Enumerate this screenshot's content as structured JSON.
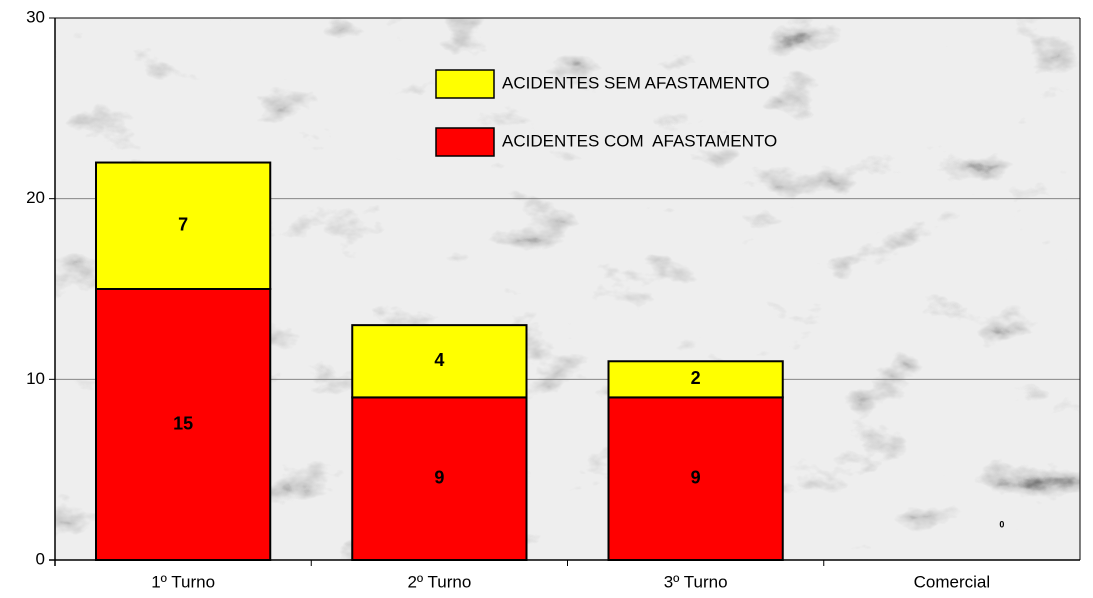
{
  "chart_data": {
    "type": "stacked_bar",
    "categories": [
      "1º Turno",
      "2º Turno",
      "3º Turno",
      "Comercial"
    ],
    "series": [
      {
        "name": "ACIDENTES COM  AFASTAMENTO",
        "color": "#ff0000",
        "values": [
          15,
          9,
          9,
          0
        ]
      },
      {
        "name": "ACIDENTES SEM AFASTAMENTO",
        "color": "#ffff00",
        "values": [
          7,
          4,
          2,
          0
        ]
      }
    ],
    "ylim": [
      0,
      30
    ],
    "yticks": [
      0,
      10,
      20,
      30
    ],
    "grid": true
  }
}
